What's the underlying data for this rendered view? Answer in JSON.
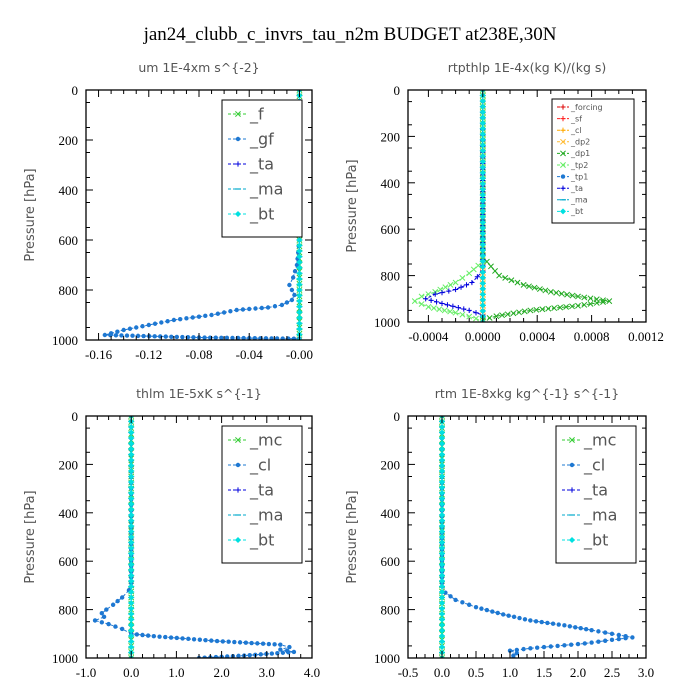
{
  "title": "jan24_clubb_c_invrs_tau_n2m  BUDGET at238E,30N",
  "chart_data": [
    {
      "type": "line",
      "title": "um   1E-4xm  s^{-2}",
      "ylabel": "Pressure [hPa]",
      "xlim": [
        -0.17,
        0.01
      ],
      "ylim": [
        1000,
        0
      ],
      "xticks": [
        -0.16,
        -0.12,
        -0.08,
        -0.04,
        0.0
      ],
      "xtick_labels": [
        "-0.16",
        "-0.12",
        "-0.08",
        "-0.04",
        "-0.00"
      ],
      "yticks": [
        0,
        200,
        400,
        600,
        800,
        1000
      ],
      "legend_position": "top-right",
      "legend_size": "large",
      "series": [
        {
          "name": "_f",
          "color": "#33cc33",
          "marker": "x",
          "points": [
            [
              0,
              0
            ],
            [
              0,
              50
            ],
            [
              0,
              100
            ],
            [
              0,
              200
            ],
            [
              0,
              300
            ],
            [
              0,
              400
            ],
            [
              0,
              500
            ],
            [
              0,
              600
            ],
            [
              0,
              700
            ],
            [
              0,
              800
            ],
            [
              0,
              900
            ],
            [
              0,
              1000
            ]
          ]
        },
        {
          "name": "_gf",
          "color": "#1e78d2",
          "marker": "dot",
          "points": [
            [
              0,
              0
            ],
            [
              0,
              600
            ],
            [
              -0.002,
              700
            ],
            [
              -0.005,
              750
            ],
            [
              -0.008,
              780
            ],
            [
              -0.004,
              820
            ],
            [
              -0.006,
              840
            ],
            [
              -0.014,
              860
            ],
            [
              -0.025,
              870
            ],
            [
              -0.05,
              880
            ],
            [
              -0.07,
              900
            ],
            [
              -0.1,
              920
            ],
            [
              -0.12,
              940
            ],
            [
              -0.14,
              960
            ],
            [
              -0.155,
              980
            ],
            [
              -0.08,
              990
            ],
            [
              0,
              995
            ]
          ]
        },
        {
          "name": "_ta",
          "color": "#0000dd",
          "marker": "plus",
          "points": [
            [
              0,
              0
            ],
            [
              0,
              1000
            ]
          ]
        },
        {
          "name": "_ma",
          "color": "#00aacc",
          "marker": "dash",
          "points": [
            [
              0,
              0
            ],
            [
              0,
              1000
            ]
          ]
        },
        {
          "name": "_bt",
          "color": "#00e0e0",
          "marker": "diamond",
          "points": [
            [
              0,
              0
            ],
            [
              0,
              1000
            ]
          ]
        }
      ]
    },
    {
      "type": "line",
      "title": "rtpthlp   1E-4x(kg K)/(kg s)",
      "ylabel": "Pressure [hPa]",
      "xlim": [
        -0.00055,
        0.0012
      ],
      "ylim": [
        1000,
        0
      ],
      "xticks": [
        -0.0004,
        0.0,
        0.0004,
        0.0008,
        0.0012
      ],
      "xtick_labels": [
        "-0.0004",
        "0.0000",
        "0.0004",
        "0.0008",
        "0.0012"
      ],
      "yticks": [
        0,
        200,
        400,
        600,
        800,
        1000
      ],
      "legend_position": "top-right",
      "legend_size": "small",
      "series": [
        {
          "name": "_forcing",
          "color": "#dd0000",
          "marker": "plus",
          "points": [
            [
              0,
              0
            ],
            [
              0,
              1000
            ]
          ]
        },
        {
          "name": "_sf",
          "color": "#ff2020",
          "marker": "plus",
          "points": [
            [
              0,
              0
            ],
            [
              0,
              1000
            ]
          ]
        },
        {
          "name": "_cl",
          "color": "#ffaa00",
          "marker": "plus",
          "points": [
            [
              0,
              0
            ],
            [
              0,
              1000
            ]
          ]
        },
        {
          "name": "_dp2",
          "color": "#ffbb33",
          "marker": "x",
          "points": [
            [
              0,
              0
            ],
            [
              0,
              1000
            ]
          ]
        },
        {
          "name": "_dp1",
          "color": "#22aa22",
          "marker": "x",
          "points": [
            [
              0,
              0
            ],
            [
              0,
              720
            ],
            [
              0.00012,
              800
            ],
            [
              0.0003,
              840
            ],
            [
              0.0005,
              870
            ],
            [
              0.0007,
              890
            ],
            [
              0.00093,
              910
            ],
            [
              0.0007,
              930
            ],
            [
              0.00035,
              950
            ],
            [
              0.0001,
              975
            ],
            [
              0,
              990
            ],
            [
              0,
              1000
            ]
          ]
        },
        {
          "name": "_tp2",
          "color": "#66ee66",
          "marker": "x",
          "points": [
            [
              0,
              0
            ],
            [
              0,
              740
            ],
            [
              -0.0001,
              790
            ],
            [
              -0.0002,
              830
            ],
            [
              -0.00035,
              870
            ],
            [
              -0.00045,
              890
            ],
            [
              -0.0005,
              910
            ],
            [
              -0.0004,
              935
            ],
            [
              -0.0002,
              960
            ],
            [
              -5e-05,
              985
            ],
            [
              0,
              1000
            ]
          ]
        },
        {
          "name": "_tp1",
          "color": "#1e78d2",
          "marker": "dot",
          "points": [
            [
              0,
              0
            ],
            [
              0,
              1000
            ]
          ]
        },
        {
          "name": "_ta",
          "color": "#0000dd",
          "marker": "plus",
          "points": [
            [
              0,
              0
            ],
            [
              0,
              780
            ],
            [
              -8e-05,
              830
            ],
            [
              -0.0002,
              860
            ],
            [
              -0.00035,
              880
            ],
            [
              -0.00042,
              900
            ],
            [
              -0.0003,
              920
            ],
            [
              -0.0001,
              950
            ],
            [
              0,
              970
            ],
            [
              0,
              1000
            ]
          ]
        },
        {
          "name": "_ma",
          "color": "#00aacc",
          "marker": "dash",
          "points": [
            [
              0,
              0
            ],
            [
              0,
              1000
            ]
          ]
        },
        {
          "name": "_bt",
          "color": "#00e0e0",
          "marker": "diamond",
          "points": [
            [
              0,
              0
            ],
            [
              0,
              1000
            ]
          ]
        }
      ]
    },
    {
      "type": "line",
      "title": "thlm   1E-5xK  s^{-1}",
      "ylabel": "Pressure [hPa]",
      "xlim": [
        -1.0,
        4.0
      ],
      "ylim": [
        1000,
        0
      ],
      "xticks": [
        -1.0,
        0.0,
        1.0,
        2.0,
        3.0,
        4.0
      ],
      "xtick_labels": [
        "-1.0",
        "0.0",
        "1.0",
        "2.0",
        "3.0",
        "4.0"
      ],
      "yticks": [
        0,
        200,
        400,
        600,
        800,
        1000
      ],
      "legend_position": "top-right",
      "legend_size": "large",
      "series": [
        {
          "name": "_mc",
          "color": "#33cc33",
          "marker": "x",
          "points": [
            [
              0,
              0
            ],
            [
              0,
              50
            ],
            [
              0,
              100
            ],
            [
              0,
              200
            ],
            [
              0,
              300
            ],
            [
              0,
              400
            ],
            [
              0,
              500
            ],
            [
              0,
              600
            ],
            [
              0,
              700
            ],
            [
              0,
              800
            ],
            [
              0,
              900
            ],
            [
              0,
              1000
            ]
          ]
        },
        {
          "name": "_cl",
          "color": "#1e78d2",
          "marker": "dot",
          "points": [
            [
              0,
              0
            ],
            [
              0,
              690
            ],
            [
              -0.05,
              720
            ],
            [
              -0.2,
              750
            ],
            [
              -0.4,
              780
            ],
            [
              -0.55,
              800
            ],
            [
              -0.65,
              815
            ],
            [
              -0.6,
              830
            ],
            [
              -0.8,
              845
            ],
            [
              -0.5,
              860
            ],
            [
              -0.2,
              880
            ],
            [
              0,
              900
            ],
            [
              0.5,
              910
            ],
            [
              1.9,
              930
            ],
            [
              3.3,
              945
            ],
            [
              3.5,
              955
            ],
            [
              3.3,
              965
            ],
            [
              3.6,
              975
            ],
            [
              2.5,
              990
            ],
            [
              1.5,
              1000
            ]
          ]
        },
        {
          "name": "_ta",
          "color": "#0000dd",
          "marker": "plus",
          "points": [
            [
              0,
              0
            ],
            [
              0,
              1000
            ]
          ]
        },
        {
          "name": "_ma",
          "color": "#00aacc",
          "marker": "dash",
          "points": [
            [
              0,
              0
            ],
            [
              0,
              1000
            ]
          ]
        },
        {
          "name": "_bt",
          "color": "#00e0e0",
          "marker": "diamond",
          "points": [
            [
              0,
              0
            ],
            [
              0,
              1000
            ]
          ]
        }
      ]
    },
    {
      "type": "line",
      "title": "rtm   1E-8xkg  kg^{-1}  s^{-1}",
      "ylabel": "Pressure [hPa]",
      "xlim": [
        -0.5,
        3.0
      ],
      "ylim": [
        1000,
        0
      ],
      "xticks": [
        -0.5,
        0.0,
        0.5,
        1.0,
        1.5,
        2.0,
        2.5,
        3.0
      ],
      "xtick_labels": [
        "-0.5",
        "0.0",
        "0.5",
        "1.0",
        "1.5",
        "2.0",
        "2.5",
        "3.0"
      ],
      "yticks": [
        0,
        200,
        400,
        600,
        800,
        1000
      ],
      "legend_position": "top-right",
      "legend_size": "large",
      "series": [
        {
          "name": "_mc",
          "color": "#33cc33",
          "marker": "x",
          "points": [
            [
              0,
              0
            ],
            [
              0,
              50
            ],
            [
              0,
              100
            ],
            [
              0,
              200
            ],
            [
              0,
              300
            ],
            [
              0,
              400
            ],
            [
              0,
              500
            ],
            [
              0,
              600
            ],
            [
              0,
              700
            ],
            [
              0,
              800
            ],
            [
              0,
              900
            ],
            [
              0,
              1000
            ]
          ]
        },
        {
          "name": "_cl",
          "color": "#1e78d2",
          "marker": "dot",
          "points": [
            [
              0,
              0
            ],
            [
              0,
              690
            ],
            [
              0.05,
              730
            ],
            [
              0.2,
              760
            ],
            [
              0.5,
              790
            ],
            [
              0.9,
              820
            ],
            [
              1.3,
              845
            ],
            [
              1.8,
              865
            ],
            [
              2.2,
              885
            ],
            [
              2.5,
              900
            ],
            [
              2.8,
              915
            ],
            [
              2.5,
              925
            ],
            [
              2.1,
              940
            ],
            [
              1.7,
              950
            ],
            [
              1.3,
              960
            ],
            [
              1.0,
              970
            ],
            [
              1.1,
              980
            ],
            [
              1.05,
              990
            ],
            [
              1.05,
              1000
            ]
          ]
        },
        {
          "name": "_ta",
          "color": "#0000dd",
          "marker": "plus",
          "points": [
            [
              0,
              0
            ],
            [
              0,
              1000
            ]
          ]
        },
        {
          "name": "_ma",
          "color": "#00aacc",
          "marker": "dash",
          "points": [
            [
              0,
              0
            ],
            [
              0,
              1000
            ]
          ]
        },
        {
          "name": "_bt",
          "color": "#00e0e0",
          "marker": "diamond",
          "points": [
            [
              0,
              0
            ],
            [
              0,
              1000
            ]
          ]
        }
      ]
    }
  ]
}
